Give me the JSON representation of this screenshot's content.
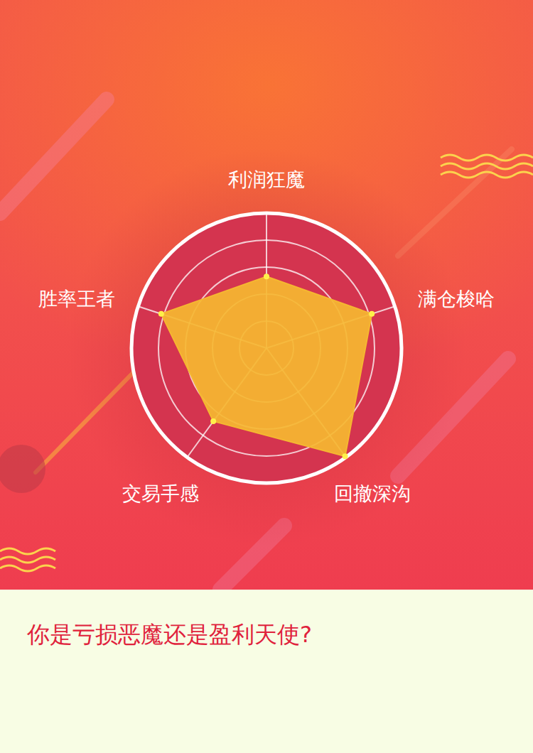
{
  "chart_data": {
    "type": "radar",
    "title": "你是亏损恶魔还是盈利天使?",
    "categories": [
      "利润狂魔",
      "满仓梭哈",
      "回撤深沟",
      "交易手感",
      "胜率王者"
    ],
    "values": [
      53,
      82,
      99,
      67,
      82
    ],
    "color": "#f5b731",
    "ylim": [
      0,
      100
    ],
    "yticks": [
      20,
      40,
      60,
      80,
      100
    ],
    "grid": true,
    "tick_labels": false
  }
}
